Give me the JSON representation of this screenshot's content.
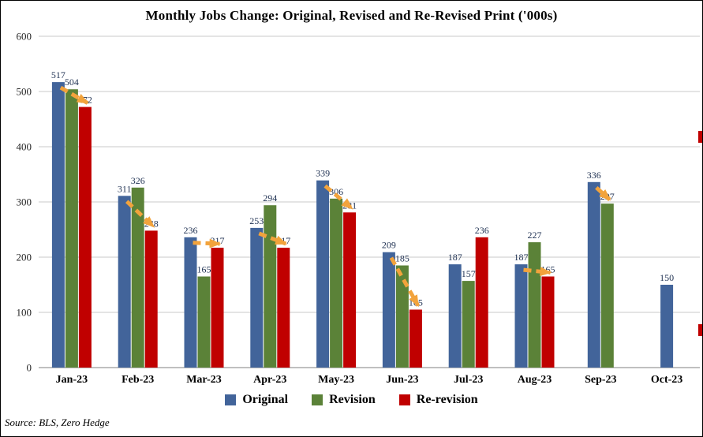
{
  "source_note": "Source: BLS, Zero Hedge",
  "colors": {
    "grid": "#C9C9C9",
    "axis": "#808080",
    "arrow": "#F2A33C",
    "re_revision_red": "#C00000"
  },
  "edge_marks": [
    {
      "y": 165,
      "height": 15
    },
    {
      "y": 410,
      "height": 15
    }
  ],
  "chart_data": {
    "type": "bar",
    "title": "Monthly Jobs Change: Original, Revised and Re-Revised Print ('000s)",
    "xlabel": "",
    "ylabel": "",
    "categories": [
      "Jan-23",
      "Feb-23",
      "Mar-23",
      "Apr-23",
      "May-23",
      "Jun-23",
      "Jul-23",
      "Aug-23",
      "Sep-23",
      "Oct-23"
    ],
    "series": [
      {
        "name": "Original",
        "color": "#42649A",
        "values": [
          517,
          311,
          236,
          253,
          339,
          209,
          187,
          187,
          336,
          150
        ]
      },
      {
        "name": "Revision",
        "color": "#5B8238",
        "values": [
          504,
          326,
          165,
          294,
          306,
          185,
          157,
          227,
          297,
          null
        ]
      },
      {
        "name": "Re-revision",
        "color": "#C00000",
        "values": [
          472,
          248,
          217,
          217,
          281,
          105,
          236,
          165,
          null,
          null
        ]
      }
    ],
    "revision_arrows": [
      true,
      true,
      true,
      true,
      true,
      true,
      false,
      true,
      true,
      false
    ],
    "ylim": [
      0,
      600
    ],
    "yticks": [
      600,
      500,
      400,
      300,
      200,
      100,
      0
    ],
    "grid": true,
    "legend_position": "bottom"
  }
}
